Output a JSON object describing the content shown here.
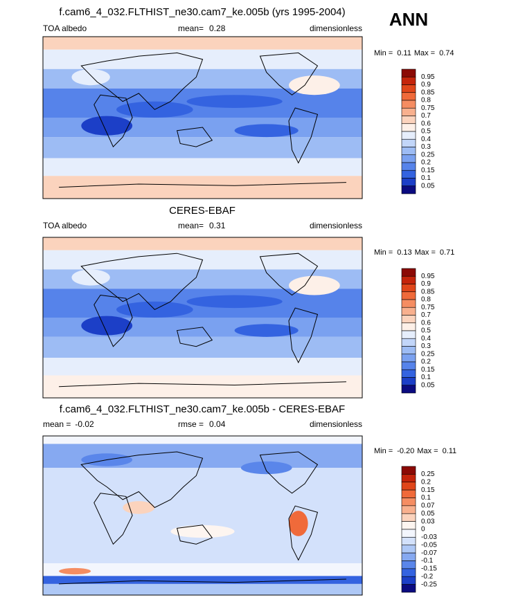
{
  "header": {
    "season": "ANN"
  },
  "panels": [
    {
      "title": "f.cam6_4_032.FLTHIST_ne30.cam7_ke.005b (yrs 1995-2004)",
      "left": "TOA albedo",
      "center_label": "mean=",
      "center_value": 0.28,
      "right": "dimensionless",
      "min_label": "Min =",
      "min": 0.11,
      "max_label": "Max =",
      "max": 0.74,
      "levels": [
        0.95,
        0.9,
        0.85,
        0.8,
        0.75,
        0.7,
        0.6,
        0.5,
        0.4,
        0.3,
        0.25,
        0.2,
        0.15,
        0.1,
        0.05
      ],
      "colors": [
        "#8b0a05",
        "#c4240b",
        "#e0461a",
        "#f06a3a",
        "#f58d62",
        "#f8b08e",
        "#fbd3bd",
        "#fdf0e8",
        "#e6eefc",
        "#c2d6f9",
        "#9dbcf4",
        "#7aa1f0",
        "#5683ea",
        "#3463e0",
        "#1c3fc7",
        "#0b0b80"
      ]
    },
    {
      "title": "CERES-EBAF",
      "left": "TOA albedo",
      "center_label": "mean=",
      "center_value": 0.31,
      "right": "dimensionless",
      "min_label": "Min =",
      "min": 0.13,
      "max_label": "Max =",
      "max": 0.71,
      "levels": [
        0.95,
        0.9,
        0.85,
        0.8,
        0.75,
        0.7,
        0.6,
        0.5,
        0.4,
        0.3,
        0.25,
        0.2,
        0.15,
        0.1,
        0.05
      ],
      "colors": [
        "#8b0a05",
        "#c4240b",
        "#e0461a",
        "#f06a3a",
        "#f58d62",
        "#f8b08e",
        "#fbd3bd",
        "#fdf0e8",
        "#e6eefc",
        "#c2d6f9",
        "#9dbcf4",
        "#7aa1f0",
        "#5683ea",
        "#3463e0",
        "#1c3fc7",
        "#0b0b80"
      ]
    },
    {
      "title": "f.cam6_4_032.FLTHIST_ne30.cam7_ke.005b - CERES-EBAF",
      "left_label": "mean =",
      "left_value": -0.02,
      "center_label": "rmse =",
      "center_value": 0.04,
      "right": "dimensionless",
      "min_label": "Min =",
      "min": {
        "value": -0.2,
        "label": "-0.20"
      },
      "max_label": "Max =",
      "max": 0.11,
      "levels": [
        0.25,
        0.2,
        0.15,
        0.1,
        0.07,
        0.05,
        0.03,
        0,
        -0.03,
        -0.05,
        -0.07,
        -0.1,
        -0.15,
        -0.2,
        -0.25
      ],
      "colors": [
        "#8b0a05",
        "#c4240b",
        "#e0461a",
        "#f06a3a",
        "#f58d62",
        "#f8b08e",
        "#fbd3bd",
        "#fdf5f0",
        "#f3f6fd",
        "#d3e1fb",
        "#aec8f6",
        "#86a9f1",
        "#5a86ea",
        "#3463e0",
        "#1c3fc7",
        "#0b0b80"
      ]
    }
  ]
}
